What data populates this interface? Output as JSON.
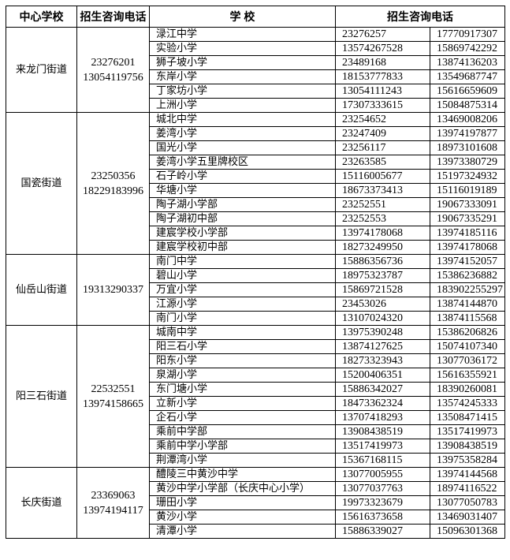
{
  "table": {
    "headers": {
      "center_school": "中心学校",
      "center_phone": "招生咨询电话",
      "school": "学 校",
      "school_phone": "招生咨询电话"
    },
    "sections": [
      {
        "street": "来龙门街道",
        "phones": [
          "23276201",
          "13054119756"
        ],
        "schools": [
          {
            "name": "渌江中学",
            "phone1": "23276257",
            "phone2": "17770917307"
          },
          {
            "name": "实验小学",
            "phone1": "13574267528",
            "phone2": "15869742292"
          },
          {
            "name": "狮子坡小学",
            "phone1": "23489168",
            "phone2": "13874136203"
          },
          {
            "name": "东岸小学",
            "phone1": "18153777833",
            "phone2": "13549687747"
          },
          {
            "name": "丁家坊小学",
            "phone1": "13054111243",
            "phone2": "15616659609"
          },
          {
            "name": "上洲小学",
            "phone1": "17307333615",
            "phone2": "15084875314"
          }
        ]
      },
      {
        "street": "国瓷街道",
        "phones": [
          "23250356",
          "18229183996"
        ],
        "schools": [
          {
            "name": "城北中学",
            "phone1": "23254652",
            "phone2": "13469008206"
          },
          {
            "name": "姜湾小学",
            "phone1": "23247409",
            "phone2": "13974197877"
          },
          {
            "name": "国光小学",
            "phone1": "23256117",
            "phone2": "18973101608"
          },
          {
            "name": "姜湾小学五里牌校区",
            "phone1": "23263585",
            "phone2": "13973380729"
          },
          {
            "name": "石子岭小学",
            "phone1": "15116005677",
            "phone2": "15197324932"
          },
          {
            "name": "华塘小学",
            "phone1": "18673373413",
            "phone2": "15116019189"
          },
          {
            "name": "陶子湖小学部",
            "phone1": "23252551",
            "phone2": "19067333091"
          },
          {
            "name": "陶子湖初中部",
            "phone1": "23252553",
            "phone2": "19067335291"
          },
          {
            "name": "建宸学校小学部",
            "phone1": "13974178068",
            "phone2": "13974185116"
          },
          {
            "name": "建宸学校初中部",
            "phone1": "18273249950",
            "phone2": "13974178068"
          }
        ]
      },
      {
        "street": "仙岳山街道",
        "phones": [
          "19313290337"
        ],
        "schools": [
          {
            "name": "南门中学",
            "phone1": "15886356736",
            "phone2": "13974152057"
          },
          {
            "name": "碧山小学",
            "phone1": "18975323787",
            "phone2": "15386236882"
          },
          {
            "name": "万宜小学",
            "phone1": "15869721528",
            "phone2": "183902255297"
          },
          {
            "name": "江源小学",
            "phone1": "23453026",
            "phone2": "13874144870"
          },
          {
            "name": "南门小学",
            "phone1": "13107024320",
            "phone2": "13874115568"
          }
        ]
      },
      {
        "street": "阳三石街道",
        "phones": [
          "22532551",
          "13974158665"
        ],
        "schools": [
          {
            "name": "城南中学",
            "phone1": "13975390248",
            "phone2": "15386206826"
          },
          {
            "name": "阳三石小学",
            "phone1": "13874127625",
            "phone2": "15074107340"
          },
          {
            "name": "阳东小学",
            "phone1": "18273323943",
            "phone2": "13077036172"
          },
          {
            "name": "泉湖小学",
            "phone1": "15200406351",
            "phone2": "15616355921"
          },
          {
            "name": "东门塘小学",
            "phone1": "15886342027",
            "phone2": "18390260081"
          },
          {
            "name": "立新小学",
            "phone1": "18473362324",
            "phone2": "13574245333"
          },
          {
            "name": "企石小学",
            "phone1": "13707418293",
            "phone2": "13508471415"
          },
          {
            "name": "乘前中学部",
            "phone1": "13908438519",
            "phone2": "13517419973"
          },
          {
            "name": "乘前中学小学部",
            "phone1": "13517419973",
            "phone2": "13908438519"
          },
          {
            "name": "荆潭湾小学",
            "phone1": "15367168115",
            "phone2": "13975358284"
          }
        ]
      },
      {
        "street": "长庆街道",
        "phones": [
          "23369063",
          "13974194117"
        ],
        "schools": [
          {
            "name": "醴陵三中黄沙中学",
            "phone1": "13077005955",
            "phone2": "13974144568"
          },
          {
            "name": "黄沙中学小学部（长庆中心小学）",
            "phone1": "13077037763",
            "phone2": "18974116522"
          },
          {
            "name": "珊田小学",
            "phone1": "19973323679",
            "phone2": "13077050783"
          },
          {
            "name": "黄沙小学",
            "phone1": "15616373658",
            "phone2": "13469031407"
          },
          {
            "name": "清潭小学",
            "phone1": "15886339027",
            "phone2": "15096301368"
          }
        ]
      }
    ]
  }
}
